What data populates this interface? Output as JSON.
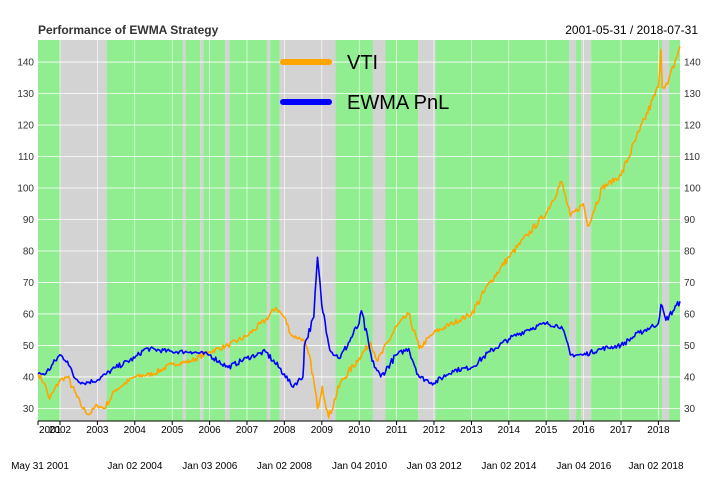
{
  "chart_data": {
    "type": "line",
    "title": "Performance of EWMA Strategy",
    "date_range": "2001-05-31 / 2018-07-31",
    "xlabel": "",
    "ylabel": "",
    "ylim": [
      26,
      147
    ],
    "grid": true,
    "legend_placement": "top-center",
    "y_ticks": [
      30,
      40,
      50,
      60,
      70,
      80,
      90,
      100,
      110,
      120,
      130,
      140
    ],
    "year_ticks": [
      "2001",
      "2002",
      "2003",
      "2004",
      "2005",
      "2006",
      "2007",
      "2008",
      "2009",
      "2010",
      "2011",
      "2012",
      "2013",
      "2014",
      "2015",
      "2016",
      "2017",
      "2018"
    ],
    "date_ticks": [
      "May 31 2001",
      "Jan 02 2004",
      "Jan 03 2006",
      "Jan 02 2008",
      "Jan 04 2010",
      "Jan 03 2012",
      "Jan 02 2014",
      "Jan 04 2016",
      "Jan 02 2018"
    ],
    "series": [
      {
        "name": "VTI",
        "color": "#FFA500",
        "points": [
          [
            "2001-05-31",
            41
          ],
          [
            "2001-08-01",
            38
          ],
          [
            "2001-09-21",
            33
          ],
          [
            "2001-12-31",
            39
          ],
          [
            "2002-03-15",
            40
          ],
          [
            "2002-07-23",
            31
          ],
          [
            "2002-10-09",
            28
          ],
          [
            "2002-12-31",
            31
          ],
          [
            "2003-03-11",
            30
          ],
          [
            "2003-06-30",
            36
          ],
          [
            "2003-12-31",
            40
          ],
          [
            "2004-06-30",
            41
          ],
          [
            "2004-12-31",
            44
          ],
          [
            "2005-06-30",
            45
          ],
          [
            "2005-12-31",
            48
          ],
          [
            "2006-06-30",
            50
          ],
          [
            "2006-12-31",
            53
          ],
          [
            "2007-06-30",
            58
          ],
          [
            "2007-10-09",
            62
          ],
          [
            "2007-12-31",
            59
          ],
          [
            "2008-03-15",
            53
          ],
          [
            "2008-06-30",
            52
          ],
          [
            "2008-09-15",
            45
          ],
          [
            "2008-11-20",
            30
          ],
          [
            "2009-01-06",
            37
          ],
          [
            "2009-03-09",
            27
          ],
          [
            "2009-06-30",
            38
          ],
          [
            "2009-12-31",
            46
          ],
          [
            "2010-04-23",
            51
          ],
          [
            "2010-07-02",
            45
          ],
          [
            "2010-12-31",
            56
          ],
          [
            "2011-04-29",
            60
          ],
          [
            "2011-08-10",
            49
          ],
          [
            "2011-12-31",
            54
          ],
          [
            "2012-06-30",
            57
          ],
          [
            "2012-12-31",
            60
          ],
          [
            "2013-06-30",
            70
          ],
          [
            "2013-12-31",
            78
          ],
          [
            "2014-06-30",
            85
          ],
          [
            "2014-12-31",
            92
          ],
          [
            "2015-05-31",
            102
          ],
          [
            "2015-08-25",
            91
          ],
          [
            "2015-12-31",
            95
          ],
          [
            "2016-02-11",
            88
          ],
          [
            "2016-06-30",
            100
          ],
          [
            "2016-12-31",
            104
          ],
          [
            "2017-06-30",
            118
          ],
          [
            "2017-12-31",
            132
          ],
          [
            "2018-01-26",
            144
          ],
          [
            "2018-02-08",
            132
          ],
          [
            "2018-04-02",
            133
          ],
          [
            "2018-07-31",
            145
          ]
        ]
      },
      {
        "name": "EWMA PnL",
        "color": "#0000FF",
        "points": [
          [
            "2001-05-31",
            41
          ],
          [
            "2001-08-15",
            41
          ],
          [
            "2001-12-31",
            47
          ],
          [
            "2002-03-15",
            45
          ],
          [
            "2002-05-15",
            40
          ],
          [
            "2002-08-15",
            38
          ],
          [
            "2002-12-31",
            39
          ],
          [
            "2003-03-31",
            41
          ],
          [
            "2003-06-30",
            43
          ],
          [
            "2003-12-31",
            46
          ],
          [
            "2004-04-15",
            49
          ],
          [
            "2004-12-31",
            48
          ],
          [
            "2005-06-30",
            48
          ],
          [
            "2005-12-31",
            47
          ],
          [
            "2006-06-30",
            43
          ],
          [
            "2006-12-31",
            46
          ],
          [
            "2007-06-30",
            48
          ],
          [
            "2007-12-31",
            41
          ],
          [
            "2008-03-15",
            37
          ],
          [
            "2008-06-30",
            40
          ],
          [
            "2008-07-15",
            50
          ],
          [
            "2008-10-15",
            59
          ],
          [
            "2008-11-20",
            78
          ],
          [
            "2008-12-31",
            63
          ],
          [
            "2009-03-31",
            48
          ],
          [
            "2009-06-30",
            46
          ],
          [
            "2009-12-31",
            57
          ],
          [
            "2010-01-22",
            61
          ],
          [
            "2010-05-07",
            45
          ],
          [
            "2010-07-30",
            40
          ],
          [
            "2010-12-31",
            47
          ],
          [
            "2011-04-29",
            49
          ],
          [
            "2011-08-10",
            40
          ],
          [
            "2011-12-31",
            38
          ],
          [
            "2012-06-30",
            42
          ],
          [
            "2012-12-31",
            43
          ],
          [
            "2013-06-30",
            48
          ],
          [
            "2013-12-31",
            52
          ],
          [
            "2014-06-30",
            55
          ],
          [
            "2014-12-31",
            57
          ],
          [
            "2015-05-31",
            56
          ],
          [
            "2015-08-25",
            47
          ],
          [
            "2015-12-31",
            47
          ],
          [
            "2016-06-30",
            49
          ],
          [
            "2016-12-31",
            50
          ],
          [
            "2017-06-30",
            54
          ],
          [
            "2017-12-31",
            57
          ],
          [
            "2018-01-26",
            63
          ],
          [
            "2018-03-15",
            58
          ],
          [
            "2018-07-31",
            64
          ]
        ]
      }
    ],
    "regimes": [
      {
        "state": "long",
        "start": "2001-05-31",
        "end": "2002-01-01"
      },
      {
        "state": "short",
        "start": "2002-01-01",
        "end": "2003-04-01"
      },
      {
        "state": "long",
        "start": "2003-04-01",
        "end": "2005-04-15"
      },
      {
        "state": "short",
        "start": "2005-04-15",
        "end": "2005-05-15"
      },
      {
        "state": "long",
        "start": "2005-05-15",
        "end": "2005-10-01"
      },
      {
        "state": "short",
        "start": "2005-10-01",
        "end": "2005-11-01"
      },
      {
        "state": "long",
        "start": "2005-11-01",
        "end": "2006-06-01"
      },
      {
        "state": "short",
        "start": "2006-06-01",
        "end": "2006-07-15"
      },
      {
        "state": "long",
        "start": "2006-07-15",
        "end": "2007-07-15"
      },
      {
        "state": "short",
        "start": "2007-07-15",
        "end": "2007-08-15"
      },
      {
        "state": "long",
        "start": "2007-08-15",
        "end": "2007-11-15"
      },
      {
        "state": "short",
        "start": "2007-11-15",
        "end": "2009-05-15"
      },
      {
        "state": "long",
        "start": "2009-05-15",
        "end": "2010-05-15"
      },
      {
        "state": "short",
        "start": "2010-05-15",
        "end": "2010-09-15"
      },
      {
        "state": "long",
        "start": "2010-09-15",
        "end": "2011-08-01"
      },
      {
        "state": "short",
        "start": "2011-08-01",
        "end": "2012-01-15"
      },
      {
        "state": "long",
        "start": "2012-01-15",
        "end": "2015-08-15"
      },
      {
        "state": "short",
        "start": "2015-08-15",
        "end": "2015-10-20"
      },
      {
        "state": "long",
        "start": "2015-10-20",
        "end": "2015-12-10"
      },
      {
        "state": "short",
        "start": "2015-12-10",
        "end": "2016-03-15"
      },
      {
        "state": "long",
        "start": "2016-03-15",
        "end": "2018-02-05"
      },
      {
        "state": "short",
        "start": "2018-02-05",
        "end": "2018-04-15"
      },
      {
        "state": "long",
        "start": "2018-04-15",
        "end": "2018-07-31"
      }
    ],
    "colors": {
      "long_regime": "#90EE90",
      "short_regime": "#D3D3D3",
      "grid": "#FFFFFF"
    }
  }
}
